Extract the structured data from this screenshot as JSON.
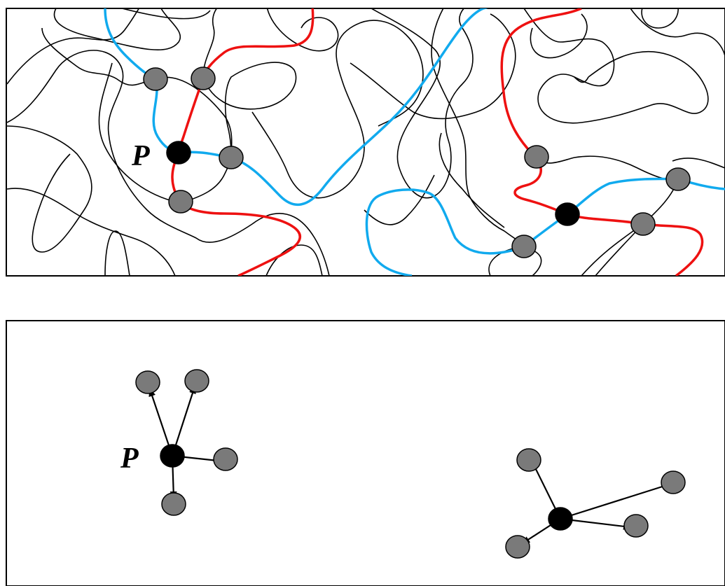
{
  "top_panel": {
    "label": "P",
    "colors": {
      "chain": "#000000",
      "highlight_red": "#ee1111",
      "highlight_blue": "#11aaee",
      "crosslink": "#7a7a7a",
      "center": "#000000"
    }
  },
  "bottom_panel": {
    "label": "P"
  }
}
